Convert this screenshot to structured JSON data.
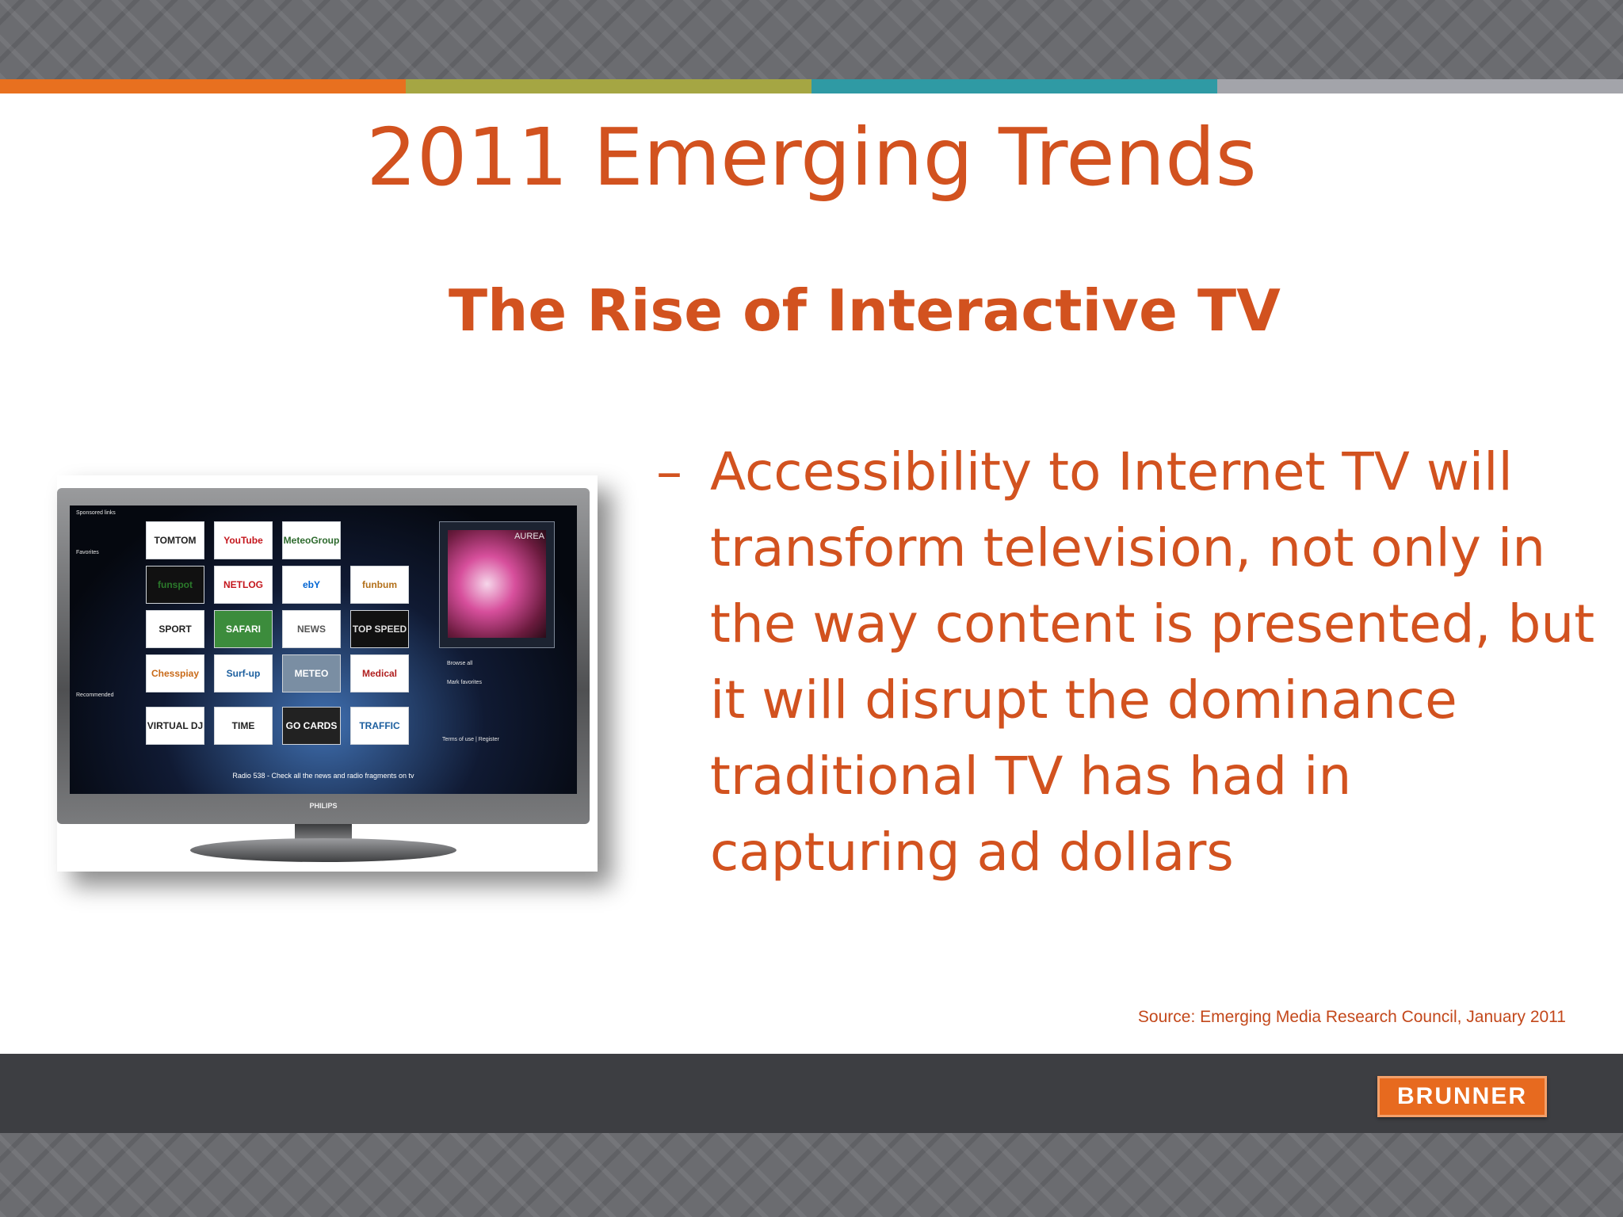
{
  "slide": {
    "title": "2011 Emerging Trends",
    "subtitle": "The Rise of Interactive TV",
    "bullet_marker": "–",
    "bullet": "Accessibility to Internet TV will transform television, not only in the way content is presented, but it will disrupt the dominance traditional TV has had in capturing ad dollars",
    "source": "Source: Emerging Media Research Council, January 2011",
    "logo": "BRUNNER"
  },
  "tv": {
    "sections": [
      "Sponsored links",
      "Favorites",
      "Recommended"
    ],
    "tiles": [
      "TOMTOM",
      "YouTube",
      "MeteoGroup",
      "funspot",
      "NETLOG",
      "ebY",
      "funbum",
      "SPORT",
      "SAFARI",
      "NEWS",
      "TOP SPEED",
      "Chesspiay",
      "Surf-up",
      "METEO",
      "Medical",
      "VIRTUAL DJ",
      "TIME",
      "GO CARDS",
      "TRAFFIC"
    ],
    "feature": "AUREA",
    "side_links": [
      "Browse all",
      "Mark favorites",
      "Terms of use | Register"
    ],
    "caption": "Radio 538 - Check all the news and radio fragments on tv",
    "brand": "PHILIPS"
  },
  "colors": {
    "accent": "#d2521f",
    "stripes": [
      "#e8701f",
      "#a5a643",
      "#2f9aa4",
      "#a3a4aa"
    ],
    "band": "#6b6c70",
    "logo_bg": "#e76a1f"
  }
}
